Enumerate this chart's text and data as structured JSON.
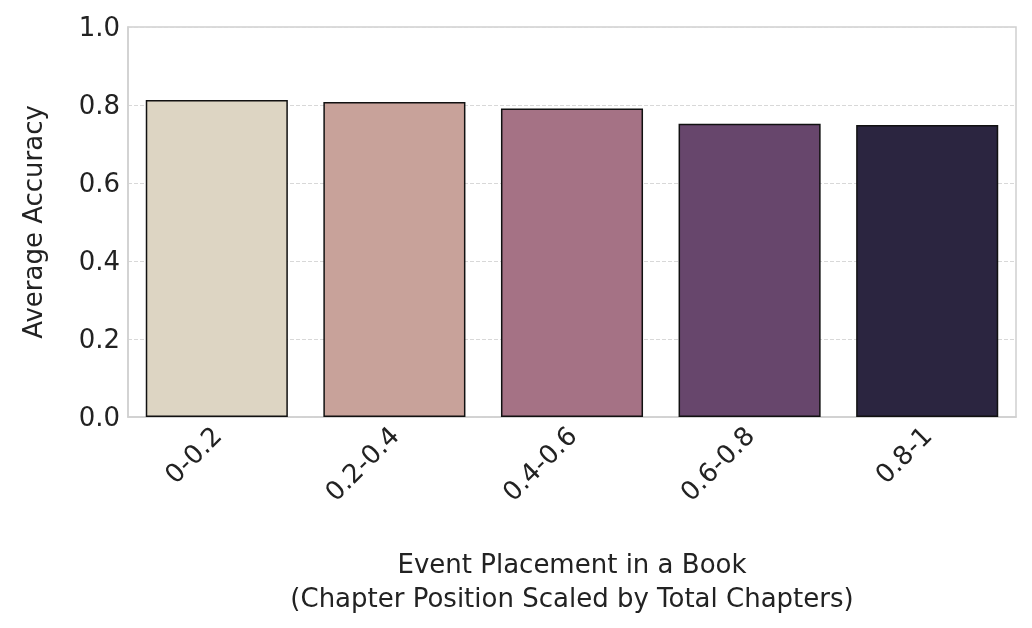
{
  "chart_data": {
    "type": "bar",
    "xlabel": "Event Placement in a Book\n(Chapter Position Scaled by Total Chapters)",
    "ylabel": "Average Accuracy",
    "categories": [
      "0-0.2",
      "0.2-0.4",
      "0.4-0.6",
      "0.6-0.8",
      "0.8-1"
    ],
    "values": [
      0.813,
      0.808,
      0.791,
      0.752,
      0.749
    ],
    "colors": [
      "#ddd5c3",
      "#c8a29a",
      "#a57285",
      "#67466c",
      "#2b2540"
    ],
    "ylim": [
      0,
      1
    ],
    "yticks": [
      {
        "value": 0,
        "label": "0.0"
      },
      0.2,
      0.4,
      0.6,
      0.8,
      {
        "value": 1,
        "label": "1.0"
      }
    ],
    "grid": "y"
  }
}
